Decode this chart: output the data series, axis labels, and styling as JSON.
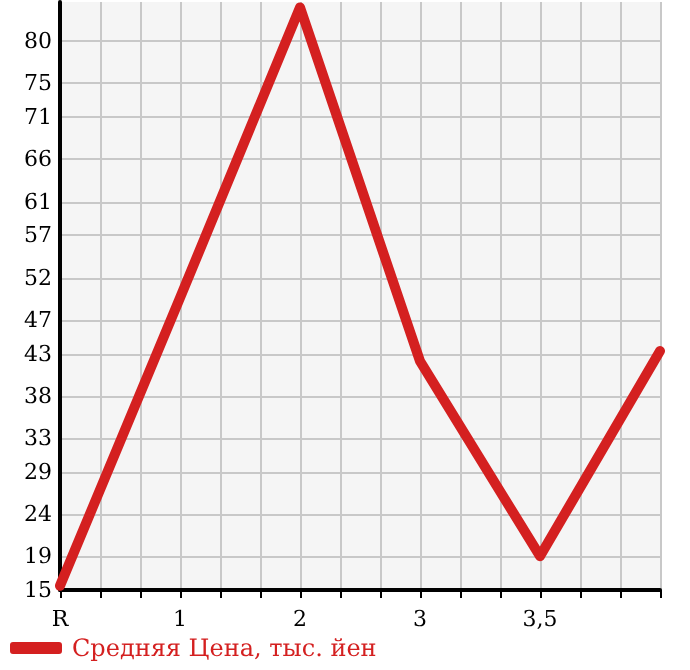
{
  "chart_data": {
    "type": "line",
    "categories": [
      "R",
      "1",
      "2",
      "3",
      "3,5",
      null
    ],
    "series": [
      {
        "name": "Средняя Цена, тыс. йен",
        "color": "#d42020",
        "values": [
          15.5,
          49.6,
          84.0,
          42.1,
          19.0,
          43.3
        ]
      }
    ],
    "ylim": [
      15,
      84.64
    ],
    "yticks": [
      15,
      19,
      24,
      29,
      33,
      38,
      43,
      47,
      52,
      57,
      61,
      66,
      71,
      75,
      80
    ],
    "grid": true,
    "legend": "bottom left",
    "marker": "none",
    "line_style": "solid"
  }
}
